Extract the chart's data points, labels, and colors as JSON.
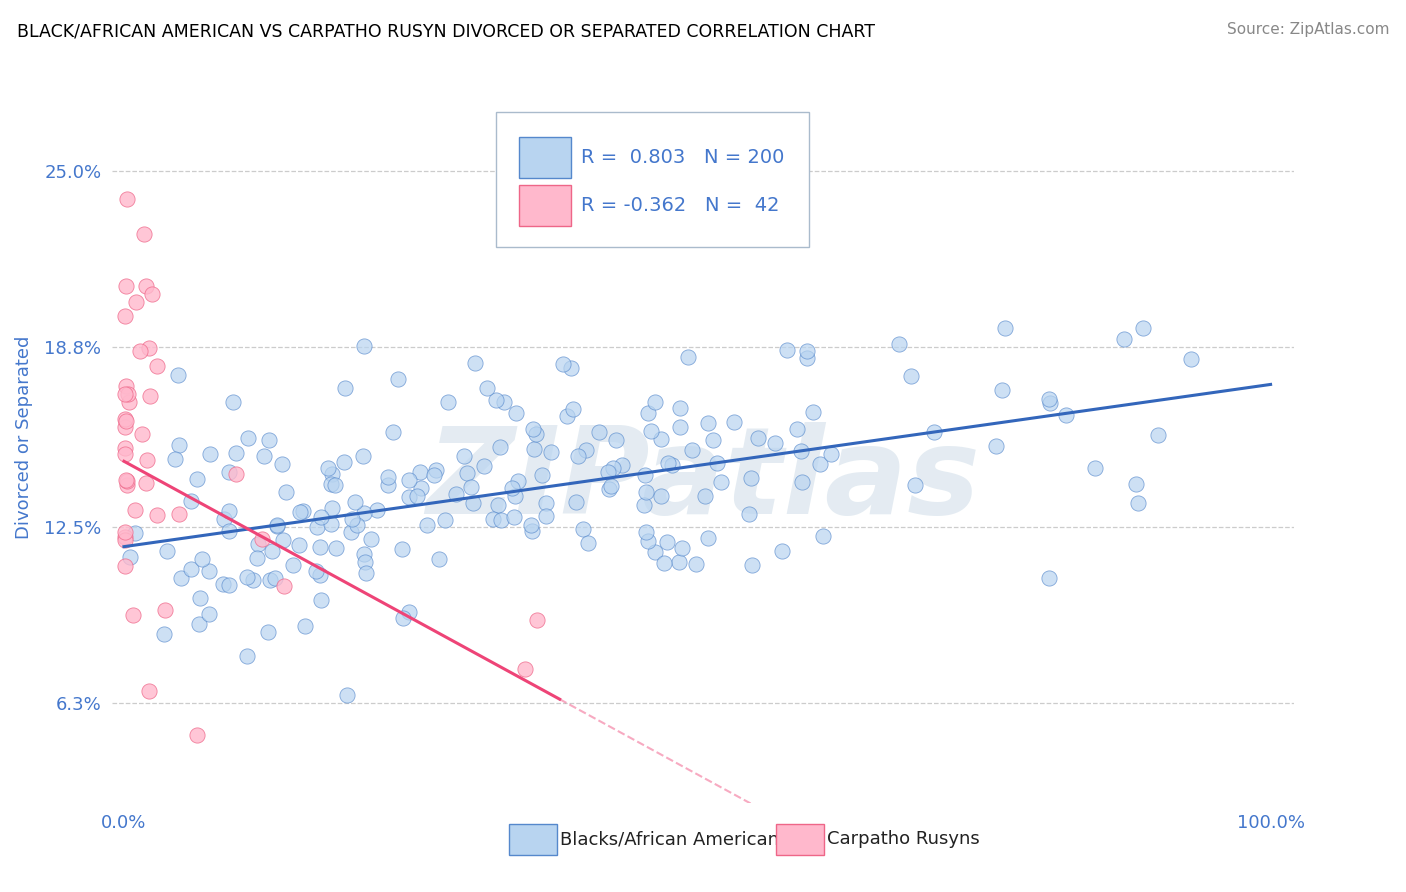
{
  "title": "BLACK/AFRICAN AMERICAN VS CARPATHO RUSYN DIVORCED OR SEPARATED CORRELATION CHART",
  "source": "Source: ZipAtlas.com",
  "ylabel": "Divorced or Separated",
  "blue_R": 0.803,
  "blue_N": 200,
  "pink_R": -0.362,
  "pink_N": 42,
  "blue_color": "#b8d4f0",
  "blue_edge_color": "#5588cc",
  "blue_line_color": "#3366bb",
  "pink_color": "#ffb8cc",
  "pink_edge_color": "#ee6688",
  "pink_line_color": "#ee4477",
  "yticks": [
    0.063,
    0.125,
    0.188,
    0.25
  ],
  "ytick_labels": [
    "6.3%",
    "12.5%",
    "18.8%",
    "25.0%"
  ],
  "watermark": "ZIPatlas",
  "legend_labels": [
    "Blacks/African Americans",
    "Carpatho Rusyns"
  ],
  "background_color": "#ffffff",
  "title_color": "#000000",
  "axis_label_color": "#4477cc",
  "tick_color": "#4477cc",
  "grid_color": "#cccccc",
  "source_color": "#888888",
  "blue_line_intercept": 0.118,
  "blue_line_slope": 0.057,
  "pink_line_intercept": 0.148,
  "pink_line_slope": -0.22
}
